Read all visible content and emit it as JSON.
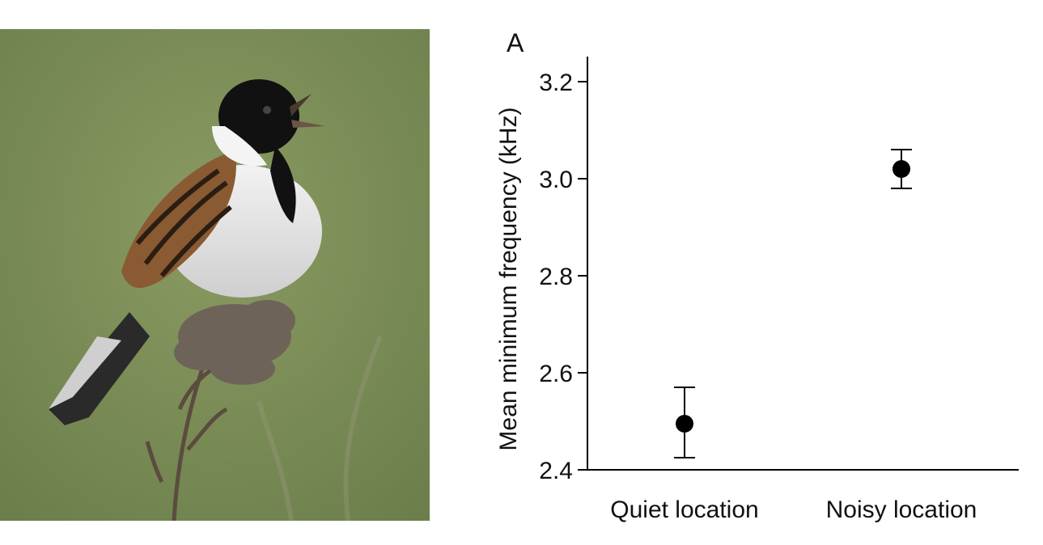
{
  "photo": {
    "subject": "reed bunting perched on dried plant stem, singing",
    "colors": {
      "background": "#7e9058",
      "head": "#111111",
      "breast": "#e6e6e6",
      "wing": "#8a5a32"
    }
  },
  "chart_data": {
    "type": "scatter",
    "panel_label": "A",
    "title": "",
    "xlabel": "",
    "ylabel": "Mean minimum frequency (kHz)",
    "categories": [
      "Quiet location",
      "Noisy location"
    ],
    "series": [
      {
        "values": [
          2.495,
          3.02
        ],
        "error_low": [
          2.425,
          2.98
        ],
        "error_high": [
          2.57,
          3.06
        ]
      }
    ],
    "yticks": [
      "2.4",
      "2.6",
      "2.8",
      "3.0",
      "3.2"
    ],
    "ylim": [
      2.4,
      3.25
    ],
    "grid": false,
    "legend": "none",
    "marker_color": "#000000"
  }
}
